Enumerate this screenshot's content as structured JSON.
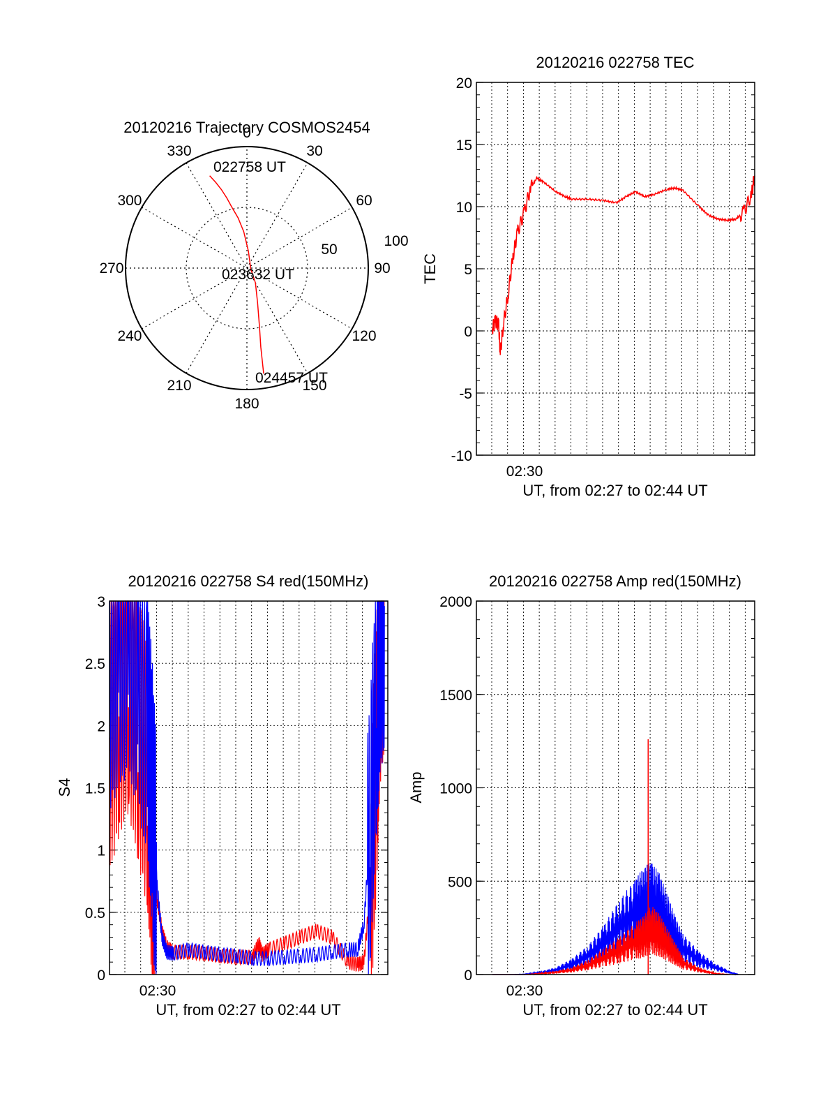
{
  "colors": {
    "red": "#ff0000",
    "blue": "#0000ff",
    "axis": "#000000",
    "grid": "#000000"
  },
  "chart_data": [
    {
      "type": "polar",
      "title": "20120216 Trajectory COSMOS2454",
      "azimuth_labels": [
        "0",
        "30",
        "60",
        "90",
        "120",
        "150",
        "180",
        "210",
        "240",
        "270",
        "300",
        "330"
      ],
      "radial_labels": [
        "50",
        "100"
      ],
      "radial_rings": [
        0,
        50,
        100
      ],
      "radius_max": 100,
      "time_labels": {
        "start": "022758 UT",
        "middle": "023632 UT",
        "end": "024457 UT"
      },
      "trajectory": {
        "name": "",
        "color": "#ff0000",
        "azimuth_deg": [
          338,
          340,
          342,
          344,
          346,
          350,
          355,
          5,
          30,
          90,
          150,
          163,
          168,
          170,
          171
        ],
        "radius": [
          82,
          75,
          68,
          60,
          52,
          42,
          30,
          14,
          5,
          3,
          14,
          30,
          50,
          66,
          88
        ]
      },
      "grid": true
    },
    {
      "type": "line",
      "title": "20120216 022758 TEC",
      "xlabel": "UT, from 02:27 to 02:44 UT",
      "ylabel": "TEC",
      "xlim": [
        27.0,
        44.5
      ],
      "ylim": [
        -10,
        20
      ],
      "yticks": [
        "20",
        "15",
        "10",
        "5",
        "0",
        "-5",
        "-10"
      ],
      "xtick_label": "02:30",
      "grid": true,
      "series": [
        {
          "name": "",
          "color": "#ff0000",
          "x": [
            28.0,
            28.2,
            28.4,
            28.5,
            28.7,
            29.0,
            29.3,
            29.6,
            30.0,
            30.4,
            30.8,
            31.2,
            32.0,
            32.6,
            33.0,
            34.0,
            35.0,
            35.8,
            36.4,
            37.0,
            37.6,
            38.2,
            39.0,
            39.5,
            40.0,
            41.0,
            41.6,
            42.2,
            42.8,
            43.3,
            43.8,
            44.3,
            44.5
          ],
          "y": [
            0.2,
            0.8,
            0.5,
            -1.8,
            0.5,
            3,
            6,
            8,
            9.5,
            11.5,
            12.3,
            12.0,
            11.2,
            10.8,
            10.6,
            10.6,
            10.5,
            10.3,
            10.8,
            11.2,
            10.8,
            11.0,
            11.4,
            11.5,
            11.3,
            10.0,
            9.3,
            9.0,
            8.9,
            9.0,
            9.5,
            11.0,
            12.5
          ]
        }
      ]
    },
    {
      "type": "line",
      "title": "20120216 022758 S4 red(150MHz)",
      "xlabel": "UT, from 02:27 to 02:44 UT",
      "ylabel": "S4",
      "xlim": [
        27.0,
        44.5
      ],
      "ylim": [
        0,
        3
      ],
      "yticks": [
        "3",
        "2.5",
        "2",
        "1.5",
        "1",
        "0.5",
        "0"
      ],
      "xtick_label": "02:30",
      "grid": true,
      "series": [
        {
          "name": "",
          "color": "#ff0000",
          "x": [
            27.0,
            27.6,
            28.2,
            28.8,
            29.4,
            29.7,
            30.0,
            30.3,
            30.6,
            31.0,
            32.0,
            33.0,
            34.0,
            35.0,
            36.0,
            36.4,
            36.6,
            37.0,
            38.0,
            39.0,
            40.0,
            41.0,
            42.0,
            42.6,
            43.0,
            43.4,
            43.8,
            44.0,
            44.3
          ],
          "y": [
            1.9,
            2.2,
            2.4,
            2.0,
            1.6,
            1.0,
            0.6,
            0.35,
            0.22,
            0.18,
            0.18,
            0.17,
            0.15,
            0.14,
            0.14,
            0.25,
            0.16,
            0.2,
            0.25,
            0.3,
            0.35,
            0.3,
            0.1,
            0.08,
            0.1,
            0.7,
            1.8,
            2.6,
            2.9
          ]
        },
        {
          "name": "",
          "color": "#0000ff",
          "x": [
            27.0,
            27.6,
            28.2,
            28.8,
            29.4,
            29.7,
            30.0,
            30.3,
            30.6,
            31.0,
            32.0,
            33.0,
            34.0,
            35.0,
            36.0,
            37.0,
            38.0,
            39.0,
            40.0,
            41.0,
            42.0,
            42.6,
            43.0,
            43.4,
            43.8,
            44.0,
            44.3
          ],
          "y": [
            2.4,
            2.6,
            2.7,
            2.4,
            2.0,
            1.4,
            0.7,
            0.3,
            0.18,
            0.17,
            0.2,
            0.18,
            0.16,
            0.15,
            0.13,
            0.13,
            0.14,
            0.15,
            0.16,
            0.18,
            0.2,
            0.2,
            0.4,
            1.2,
            2.2,
            2.7,
            2.9
          ]
        }
      ]
    },
    {
      "type": "line",
      "title": "20120216 022758 Amp red(150MHz)",
      "xlabel": "UT, from 02:27 to 02:44 UT",
      "ylabel": "Amp",
      "xlim": [
        27.0,
        44.5
      ],
      "ylim": [
        0,
        2000
      ],
      "yticks": [
        "2000",
        "1500",
        "1000",
        "500",
        "0"
      ],
      "xtick_label": "02:30",
      "grid": true,
      "series": [
        {
          "name": "",
          "color": "#0000ff",
          "x": [
            28.0,
            29.0,
            30.0,
            31.0,
            32.0,
            33.0,
            34.0,
            35.0,
            36.0,
            37.0,
            37.5,
            38.0,
            38.5,
            39.0,
            39.5,
            40.0,
            41.0,
            42.0,
            43.0,
            43.5
          ],
          "y": [
            0,
            0,
            2,
            10,
            25,
            55,
            100,
            170,
            260,
            330,
            370,
            390,
            350,
            280,
            200,
            140,
            80,
            40,
            10,
            0
          ]
        },
        {
          "name": "",
          "color": "#ff0000",
          "x": [
            28.0,
            29.0,
            30.0,
            31.0,
            32.0,
            33.0,
            34.0,
            35.0,
            36.0,
            37.0,
            37.5,
            38.0,
            38.5,
            39.0,
            39.5,
            40.0,
            41.0,
            42.0,
            43.0
          ],
          "y": [
            0,
            0,
            0,
            5,
            12,
            25,
            50,
            90,
            130,
            180,
            200,
            240,
            210,
            160,
            110,
            60,
            25,
            5,
            0
          ]
        }
      ],
      "spike": {
        "x": 37.8,
        "y": 1260,
        "color": "#ff0000"
      }
    }
  ]
}
